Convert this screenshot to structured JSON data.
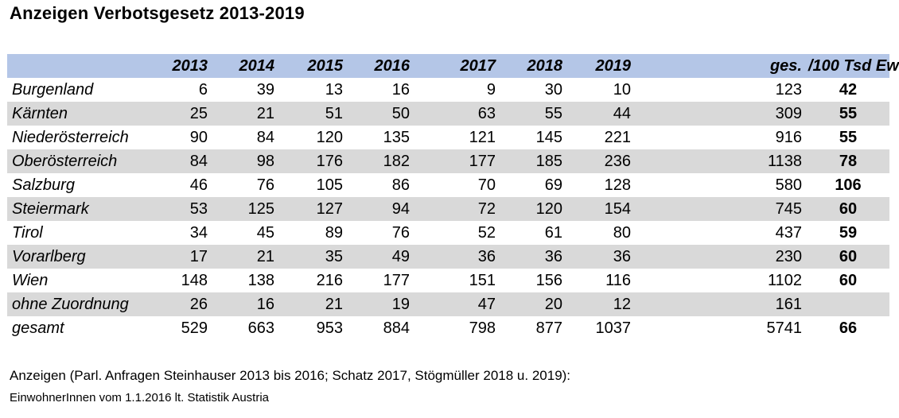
{
  "title": "Anzeigen Verbotsgesetz 2013-2019",
  "chart_data": {
    "type": "table",
    "columns": [
      "",
      "2013",
      "2014",
      "2015",
      "2016",
      "2017",
      "2018",
      "2019",
      "ges.",
      "/100 Tsd Ew"
    ],
    "rows": [
      {
        "region": "Burgenland",
        "values": [
          "6",
          "39",
          "13",
          "16",
          "9",
          "30",
          "10"
        ],
        "total": "123",
        "rate": "42"
      },
      {
        "region": "Kärnten",
        "values": [
          "25",
          "21",
          "51",
          "50",
          "63",
          "55",
          "44"
        ],
        "total": "309",
        "rate": "55"
      },
      {
        "region": "Niederösterreich",
        "values": [
          "90",
          "84",
          "120",
          "135",
          "121",
          "145",
          "221"
        ],
        "total": "916",
        "rate": "55"
      },
      {
        "region": "Oberösterreich",
        "values": [
          "84",
          "98",
          "176",
          "182",
          "177",
          "185",
          "236"
        ],
        "total": "1138",
        "rate": "78"
      },
      {
        "region": "Salzburg",
        "values": [
          "46",
          "76",
          "105",
          "86",
          "70",
          "69",
          "128"
        ],
        "total": "580",
        "rate": "106"
      },
      {
        "region": "Steiermark",
        "values": [
          "53",
          "125",
          "127",
          "94",
          "72",
          "120",
          "154"
        ],
        "total": "745",
        "rate": "60"
      },
      {
        "region": "Tirol",
        "values": [
          "34",
          "45",
          "89",
          "76",
          "52",
          "61",
          "80"
        ],
        "total": "437",
        "rate": "59"
      },
      {
        "region": "Vorarlberg",
        "values": [
          "17",
          "21",
          "35",
          "49",
          "36",
          "36",
          "36"
        ],
        "total": "230",
        "rate": "60"
      },
      {
        "region": "Wien",
        "values": [
          "148",
          "138",
          "216",
          "177",
          "151",
          "156",
          "116"
        ],
        "total": "1102",
        "rate": "60"
      },
      {
        "region": "ohne Zuordnung",
        "values": [
          "26",
          "16",
          "21",
          "19",
          "47",
          "20",
          "12"
        ],
        "total": "161",
        "rate": ""
      },
      {
        "region": "gesamt",
        "values": [
          "529",
          "663",
          "953",
          "884",
          "798",
          "877",
          "1037"
        ],
        "total": "5741",
        "rate": "66"
      }
    ]
  },
  "notes": {
    "line1": "Anzeigen (Parl. Anfragen Steinhauser 2013 bis 2016; Schatz 2017, Stögmüller 2018 u. 2019):",
    "line2": "EinwohnerInnen vom 1.1.2016 lt. Statistik Austria"
  },
  "colors": {
    "header_bg": "#b4c6e7",
    "stripe_bg": "#d9d9d9"
  }
}
